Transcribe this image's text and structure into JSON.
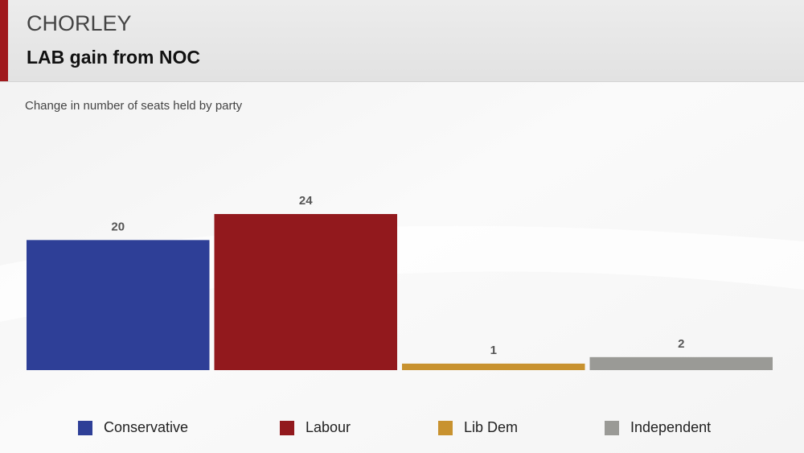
{
  "chart_data": {
    "type": "bar",
    "title": "CHORLEY",
    "subtitle": "LAB gain from NOC",
    "description": "Change in number of seats held by party",
    "categories": [
      "Conservative",
      "Labour",
      "Lib Dem",
      "Independent"
    ],
    "values": [
      20,
      24,
      1,
      2
    ],
    "colors": [
      "#2e3f97",
      "#92191d",
      "#c8922f",
      "#9a9a96"
    ],
    "legend": "bottom"
  }
}
